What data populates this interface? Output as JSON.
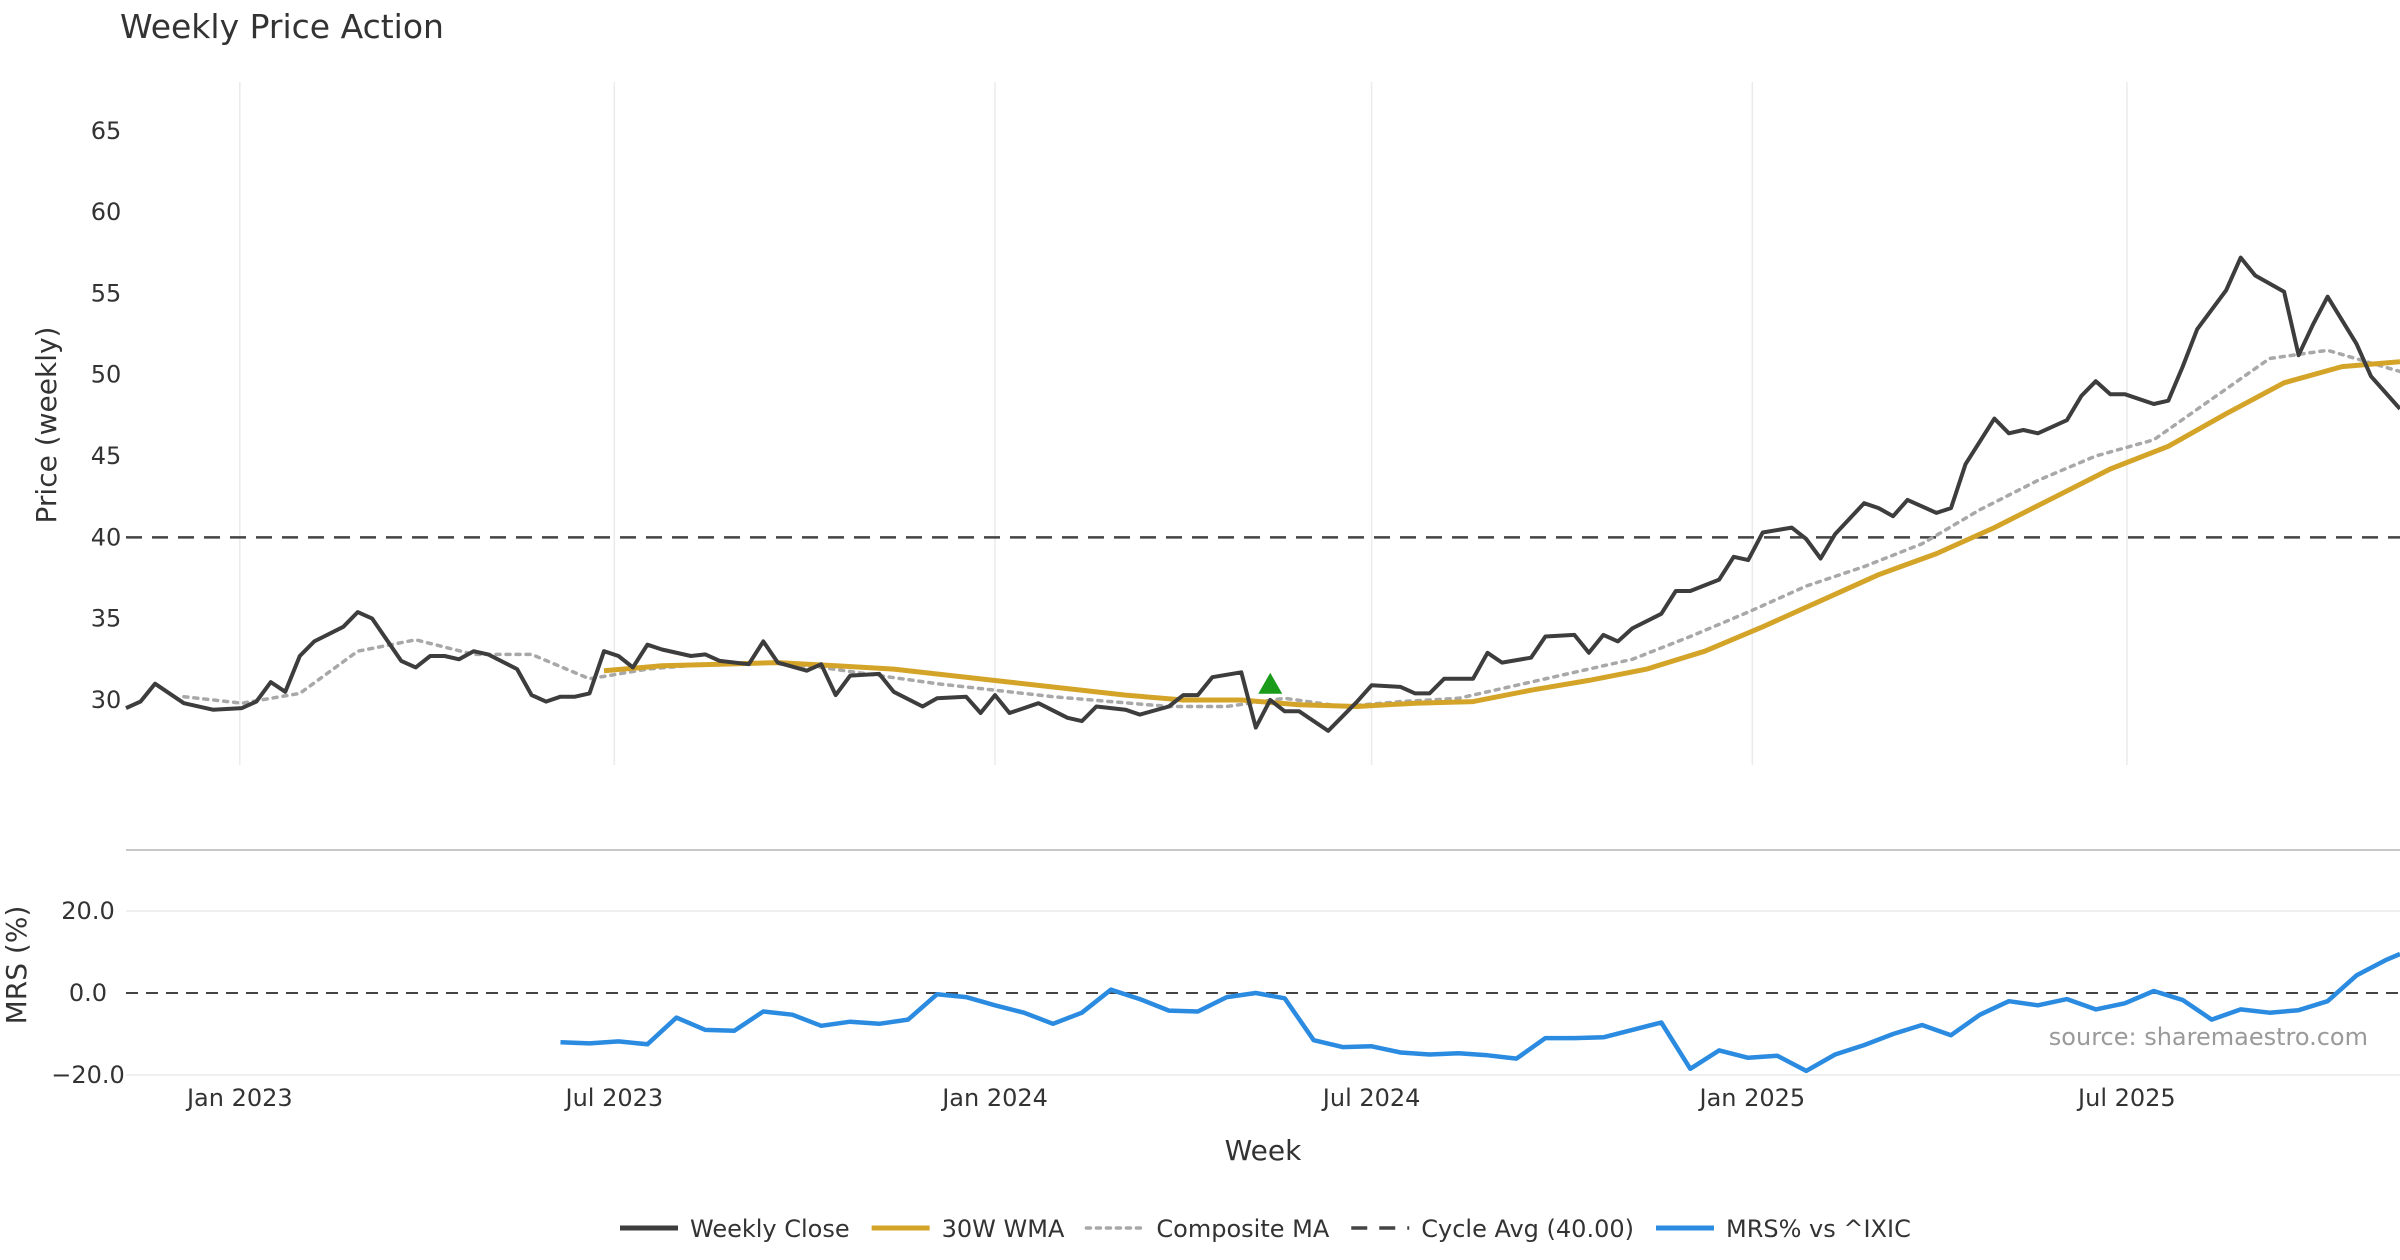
{
  "chart_data": {
    "type": "line",
    "title": "Weekly Price Action",
    "xlabel": "Week",
    "x_ticks": [
      "Jan 2023",
      "Jul 2023",
      "Jan 2024",
      "Jul 2024",
      "Jan 2025",
      "Jul 2025"
    ],
    "x_tick_dates": [
      "2023-01-01",
      "2023-07-01",
      "2024-01-01",
      "2024-07-01",
      "2025-01-01",
      "2025-07-01"
    ],
    "x_range": [
      "2022-11-07",
      "2025-11-10"
    ],
    "grid": "vertical",
    "legend_position": "bottom-center",
    "source": "source: sharemaestro.com",
    "price_panel": {
      "ylabel": "Price (weekly)",
      "ylim": [
        26,
        68
      ],
      "yticks": [
        "30",
        "35",
        "40",
        "45",
        "50",
        "55",
        "60",
        "65"
      ],
      "ytick_values": [
        30,
        35,
        40,
        45,
        50,
        55,
        60,
        65
      ],
      "cycle_avg": 40.0,
      "signal_marker": {
        "type": "triangle-up",
        "date": "2024-05-13",
        "value": 31.0,
        "color": "#1a9c1a"
      },
      "weekly_close": [
        [
          "2022-11-07",
          29.5
        ],
        [
          "2022-11-14",
          29.9
        ],
        [
          "2022-11-21",
          31.0
        ],
        [
          "2022-12-05",
          29.8
        ],
        [
          "2022-12-19",
          29.4
        ],
        [
          "2023-01-02",
          29.5
        ],
        [
          "2023-01-09",
          29.9
        ],
        [
          "2023-01-16",
          31.1
        ],
        [
          "2023-01-23",
          30.5
        ],
        [
          "2023-01-30",
          32.7
        ],
        [
          "2023-02-06",
          33.6
        ],
        [
          "2023-02-20",
          34.5
        ],
        [
          "2023-02-27",
          35.4
        ],
        [
          "2023-03-06",
          35.0
        ],
        [
          "2023-03-20",
          32.4
        ],
        [
          "2023-03-27",
          32.0
        ],
        [
          "2023-04-03",
          32.7
        ],
        [
          "2023-04-10",
          32.7
        ],
        [
          "2023-04-17",
          32.5
        ],
        [
          "2023-04-24",
          33.0
        ],
        [
          "2023-05-01",
          32.8
        ],
        [
          "2023-05-15",
          31.9
        ],
        [
          "2023-05-22",
          30.3
        ],
        [
          "2023-05-29",
          29.9
        ],
        [
          "2023-06-05",
          30.2
        ],
        [
          "2023-06-12",
          30.2
        ],
        [
          "2023-06-19",
          30.4
        ],
        [
          "2023-06-26",
          33.0
        ],
        [
          "2023-07-03",
          32.7
        ],
        [
          "2023-07-10",
          32.0
        ],
        [
          "2023-07-17",
          33.4
        ],
        [
          "2023-07-24",
          33.1
        ],
        [
          "2023-08-07",
          32.7
        ],
        [
          "2023-08-14",
          32.8
        ],
        [
          "2023-08-21",
          32.4
        ],
        [
          "2023-09-04",
          32.2
        ],
        [
          "2023-09-11",
          33.6
        ],
        [
          "2023-09-18",
          32.3
        ],
        [
          "2023-10-02",
          31.8
        ],
        [
          "2023-10-09",
          32.2
        ],
        [
          "2023-10-16",
          30.3
        ],
        [
          "2023-10-23",
          31.5
        ],
        [
          "2023-11-06",
          31.6
        ],
        [
          "2023-11-13",
          30.5
        ],
        [
          "2023-11-27",
          29.6
        ],
        [
          "2023-12-04",
          30.1
        ],
        [
          "2023-12-18",
          30.2
        ],
        [
          "2023-12-25",
          29.2
        ],
        [
          "2024-01-01",
          30.3
        ],
        [
          "2024-01-08",
          29.2
        ],
        [
          "2024-01-15",
          29.5
        ],
        [
          "2024-01-22",
          29.8
        ],
        [
          "2024-02-05",
          28.9
        ],
        [
          "2024-02-12",
          28.7
        ],
        [
          "2024-02-19",
          29.6
        ],
        [
          "2024-03-04",
          29.4
        ],
        [
          "2024-03-11",
          29.1
        ],
        [
          "2024-03-25",
          29.6
        ],
        [
          "2024-04-01",
          30.3
        ],
        [
          "2024-04-08",
          30.3
        ],
        [
          "2024-04-15",
          31.4
        ],
        [
          "2024-04-29",
          31.7
        ],
        [
          "2024-05-06",
          28.3
        ],
        [
          "2024-05-13",
          30.0
        ],
        [
          "2024-05-20",
          29.3
        ],
        [
          "2024-05-27",
          29.3
        ],
        [
          "2024-06-10",
          28.1
        ],
        [
          "2024-06-17",
          29.0
        ],
        [
          "2024-06-24",
          29.9
        ],
        [
          "2024-07-01",
          30.9
        ],
        [
          "2024-07-15",
          30.8
        ],
        [
          "2024-07-22",
          30.4
        ],
        [
          "2024-07-29",
          30.4
        ],
        [
          "2024-08-05",
          31.3
        ],
        [
          "2024-08-19",
          31.3
        ],
        [
          "2024-08-26",
          32.9
        ],
        [
          "2024-09-02",
          32.3
        ],
        [
          "2024-09-16",
          32.6
        ],
        [
          "2024-09-23",
          33.9
        ],
        [
          "2024-10-07",
          34.0
        ],
        [
          "2024-10-14",
          32.9
        ],
        [
          "2024-10-21",
          34.0
        ],
        [
          "2024-10-28",
          33.6
        ],
        [
          "2024-11-04",
          34.4
        ],
        [
          "2024-11-18",
          35.3
        ],
        [
          "2024-11-25",
          36.7
        ],
        [
          "2024-12-02",
          36.7
        ],
        [
          "2024-12-16",
          37.4
        ],
        [
          "2024-12-23",
          38.8
        ],
        [
          "2024-12-30",
          38.6
        ],
        [
          "2025-01-06",
          40.3
        ],
        [
          "2025-01-20",
          40.6
        ],
        [
          "2025-01-27",
          39.9
        ],
        [
          "2025-02-03",
          38.7
        ],
        [
          "2025-02-10",
          40.2
        ],
        [
          "2025-02-24",
          42.1
        ],
        [
          "2025-03-03",
          41.8
        ],
        [
          "2025-03-10",
          41.3
        ],
        [
          "2025-03-17",
          42.3
        ],
        [
          "2025-03-31",
          41.5
        ],
        [
          "2025-04-07",
          41.8
        ],
        [
          "2025-04-14",
          44.5
        ],
        [
          "2025-04-28",
          47.3
        ],
        [
          "2025-05-05",
          46.4
        ],
        [
          "2025-05-12",
          46.6
        ],
        [
          "2025-05-19",
          46.4
        ],
        [
          "2025-06-02",
          47.2
        ],
        [
          "2025-06-09",
          48.7
        ],
        [
          "2025-06-16",
          49.6
        ],
        [
          "2025-06-23",
          48.8
        ],
        [
          "2025-06-30",
          48.8
        ],
        [
          "2025-07-14",
          48.2
        ],
        [
          "2025-07-21",
          48.4
        ],
        [
          "2025-07-28",
          50.5
        ],
        [
          "2025-08-04",
          52.8
        ],
        [
          "2025-08-18",
          55.2
        ],
        [
          "2025-08-25",
          57.2
        ],
        [
          "2025-09-01",
          56.1
        ],
        [
          "2025-09-15",
          55.1
        ],
        [
          "2025-09-22",
          51.2
        ],
        [
          "2025-09-29",
          53.1
        ],
        [
          "2025-10-06",
          54.8
        ],
        [
          "2025-10-20",
          51.9
        ],
        [
          "2025-10-27",
          49.9
        ],
        [
          "2025-11-10",
          47.9
        ]
      ],
      "wma_30w": [
        [
          "2023-06-26",
          31.8
        ],
        [
          "2023-07-24",
          32.1
        ],
        [
          "2023-08-21",
          32.2
        ],
        [
          "2023-09-18",
          32.3
        ],
        [
          "2023-10-16",
          32.1
        ],
        [
          "2023-11-13",
          31.9
        ],
        [
          "2023-12-11",
          31.5
        ],
        [
          "2024-01-08",
          31.1
        ],
        [
          "2024-02-05",
          30.7
        ],
        [
          "2024-03-04",
          30.3
        ],
        [
          "2024-04-01",
          30.0
        ],
        [
          "2024-04-29",
          30.0
        ],
        [
          "2024-05-27",
          29.7
        ],
        [
          "2024-06-24",
          29.6
        ],
        [
          "2024-07-22",
          29.8
        ],
        [
          "2024-08-19",
          29.9
        ],
        [
          "2024-09-16",
          30.6
        ],
        [
          "2024-10-14",
          31.2
        ],
        [
          "2024-11-11",
          31.9
        ],
        [
          "2024-12-09",
          33.0
        ],
        [
          "2025-01-06",
          34.5
        ],
        [
          "2025-02-03",
          36.1
        ],
        [
          "2025-03-03",
          37.7
        ],
        [
          "2025-03-31",
          39.0
        ],
        [
          "2025-04-28",
          40.6
        ],
        [
          "2025-05-26",
          42.4
        ],
        [
          "2025-06-23",
          44.2
        ],
        [
          "2025-07-21",
          45.6
        ],
        [
          "2025-08-18",
          47.6
        ],
        [
          "2025-09-15",
          49.5
        ],
        [
          "2025-10-13",
          50.5
        ],
        [
          "2025-11-10",
          50.8
        ]
      ],
      "composite_ma": [
        [
          "2022-12-05",
          30.2
        ],
        [
          "2023-01-02",
          29.8
        ],
        [
          "2023-01-30",
          30.4
        ],
        [
          "2023-02-27",
          33.0
        ],
        [
          "2023-03-27",
          33.7
        ],
        [
          "2023-04-24",
          32.8
        ],
        [
          "2023-05-22",
          32.8
        ],
        [
          "2023-06-19",
          31.3
        ],
        [
          "2023-07-17",
          31.9
        ],
        [
          "2023-08-14",
          32.2
        ],
        [
          "2023-09-11",
          32.3
        ],
        [
          "2023-10-09",
          32.0
        ],
        [
          "2023-11-06",
          31.5
        ],
        [
          "2023-12-04",
          31.0
        ],
        [
          "2024-01-01",
          30.6
        ],
        [
          "2024-01-29",
          30.2
        ],
        [
          "2024-02-26",
          29.9
        ],
        [
          "2024-03-25",
          29.6
        ],
        [
          "2024-04-22",
          29.6
        ],
        [
          "2024-05-20",
          30.1
        ],
        [
          "2024-06-17",
          29.6
        ],
        [
          "2024-07-15",
          29.9
        ],
        [
          "2024-08-12",
          30.1
        ],
        [
          "2024-09-09",
          30.9
        ],
        [
          "2024-10-07",
          31.7
        ],
        [
          "2024-11-04",
          32.5
        ],
        [
          "2024-12-02",
          33.9
        ],
        [
          "2024-12-30",
          35.4
        ],
        [
          "2025-01-27",
          37.0
        ],
        [
          "2025-02-24",
          38.2
        ],
        [
          "2025-03-24",
          39.6
        ],
        [
          "2025-04-21",
          41.7
        ],
        [
          "2025-05-19",
          43.5
        ],
        [
          "2025-06-16",
          45.0
        ],
        [
          "2025-07-14",
          46.0
        ],
        [
          "2025-08-11",
          48.5
        ],
        [
          "2025-09-08",
          51.0
        ],
        [
          "2025-10-06",
          51.5
        ],
        [
          "2025-11-10",
          50.2
        ]
      ]
    },
    "mrs_panel": {
      "ylabel": "MRS (%)",
      "ylim": [
        -20,
        30
      ],
      "yticks": [
        "20.0",
        "0.0",
        "−20.0"
      ],
      "ytick_values": [
        20,
        0,
        -20
      ],
      "zero_line": 0,
      "mrs_vs_ixic": [
        [
          "2023-06-05",
          -12.0
        ],
        [
          "2023-06-19",
          -12.3
        ],
        [
          "2023-07-03",
          -11.8
        ],
        [
          "2023-07-17",
          -12.5
        ],
        [
          "2023-07-31",
          -6.0
        ],
        [
          "2023-08-14",
          -9.0
        ],
        [
          "2023-08-28",
          -9.2
        ],
        [
          "2023-09-11",
          -4.5
        ],
        [
          "2023-09-25",
          -5.3
        ],
        [
          "2023-10-09",
          -8.0
        ],
        [
          "2023-10-23",
          -7.0
        ],
        [
          "2023-11-06",
          -7.5
        ],
        [
          "2023-11-20",
          -6.5
        ],
        [
          "2023-12-04",
          -0.3
        ],
        [
          "2023-12-18",
          -1.0
        ],
        [
          "2024-01-01",
          -3.0
        ],
        [
          "2024-01-15",
          -4.8
        ],
        [
          "2024-01-29",
          -7.5
        ],
        [
          "2024-02-12",
          -4.8
        ],
        [
          "2024-02-26",
          0.8
        ],
        [
          "2024-03-11",
          -1.5
        ],
        [
          "2024-03-25",
          -4.3
        ],
        [
          "2024-04-08",
          -4.5
        ],
        [
          "2024-04-22",
          -1.0
        ],
        [
          "2024-05-06",
          0.0
        ],
        [
          "2024-05-20",
          -1.3
        ],
        [
          "2024-06-03",
          -11.5
        ],
        [
          "2024-06-17",
          -13.2
        ],
        [
          "2024-07-01",
          -13.0
        ],
        [
          "2024-07-15",
          -14.5
        ],
        [
          "2024-07-29",
          -15.0
        ],
        [
          "2024-08-12",
          -14.7
        ],
        [
          "2024-08-26",
          -15.2
        ],
        [
          "2024-09-09",
          -16.0
        ],
        [
          "2024-09-23",
          -11.0
        ],
        [
          "2024-10-07",
          -11.0
        ],
        [
          "2024-10-21",
          -10.8
        ],
        [
          "2024-11-04",
          -9.0
        ],
        [
          "2024-11-18",
          -7.2
        ],
        [
          "2024-12-02",
          -18.5
        ],
        [
          "2024-12-16",
          -14.0
        ],
        [
          "2024-12-30",
          -15.8
        ],
        [
          "2025-01-13",
          -15.3
        ],
        [
          "2025-01-27",
          -19.0
        ],
        [
          "2025-02-10",
          -15.0
        ],
        [
          "2025-02-24",
          -12.7
        ],
        [
          "2025-03-10",
          -10.0
        ],
        [
          "2025-03-24",
          -7.8
        ],
        [
          "2025-04-07",
          -10.3
        ],
        [
          "2025-04-21",
          -5.3
        ],
        [
          "2025-05-05",
          -2.0
        ],
        [
          "2025-05-19",
          -3.0
        ],
        [
          "2025-06-02",
          -1.5
        ],
        [
          "2025-06-16",
          -4.0
        ],
        [
          "2025-06-30",
          -2.5
        ],
        [
          "2025-07-14",
          0.5
        ],
        [
          "2025-07-28",
          -1.7
        ],
        [
          "2025-08-11",
          -6.5
        ],
        [
          "2025-08-25",
          -4.0
        ],
        [
          "2025-09-08",
          -4.8
        ],
        [
          "2025-09-22",
          -4.2
        ],
        [
          "2025-10-06",
          -2.0
        ],
        [
          "2025-10-20",
          4.3
        ],
        [
          "2025-11-03",
          8.0
        ],
        [
          "2025-11-10",
          9.5
        ]
      ]
    },
    "legend": [
      {
        "label": "Weekly Close",
        "color": "#3d3d3d",
        "style": "solid"
      },
      {
        "label": "30W WMA",
        "color": "#d4a428",
        "style": "solid"
      },
      {
        "label": "Composite MA",
        "color": "#a8a8a8",
        "style": "dotted"
      },
      {
        "label": "Cycle Avg (40.00)",
        "color": "#444444",
        "style": "dashed"
      },
      {
        "label": "MRS% vs ^IXIC",
        "color": "#2a8be0",
        "style": "solid"
      }
    ]
  }
}
